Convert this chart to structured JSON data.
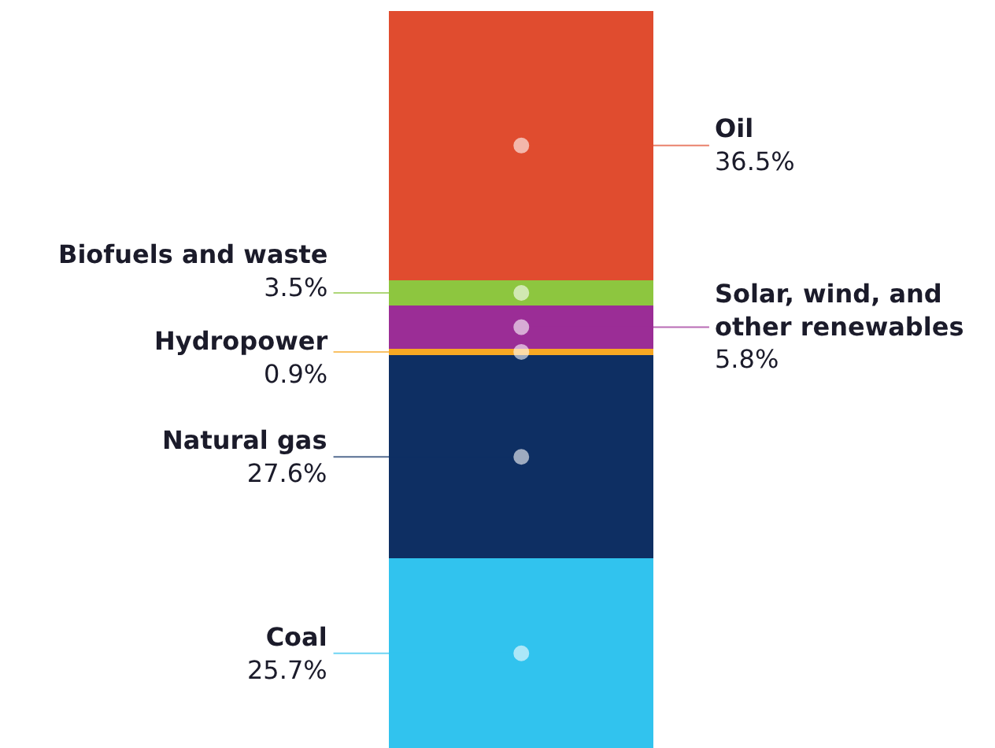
{
  "chart_data": {
    "type": "bar",
    "stacked": true,
    "categories": [
      null
    ],
    "series": [
      {
        "name": "Coal",
        "color": "#31c3ee",
        "values": [
          25.7
        ],
        "value_labels": [
          "25.7%"
        ]
      },
      {
        "name": "Natural gas",
        "color": "#0e2f63",
        "values": [
          27.6
        ],
        "value_labels": [
          "27.6%"
        ]
      },
      {
        "name": "Hydropower",
        "color": "#f7a823",
        "values": [
          0.9
        ],
        "value_labels": [
          "0.9%"
        ]
      },
      {
        "name": "Solar, wind, and other renewables",
        "color": "#9b2d96",
        "values": [
          5.8
        ],
        "value_labels": [
          "5.8%"
        ]
      },
      {
        "name": "Biofuels and waste",
        "color": "#8dc63f",
        "values": [
          3.5
        ],
        "value_labels": [
          "3.5%"
        ]
      },
      {
        "name": "Oil",
        "color": "#e04c2f",
        "values": [
          36.5
        ],
        "value_labels": [
          "36.5%"
        ]
      }
    ]
  }
}
